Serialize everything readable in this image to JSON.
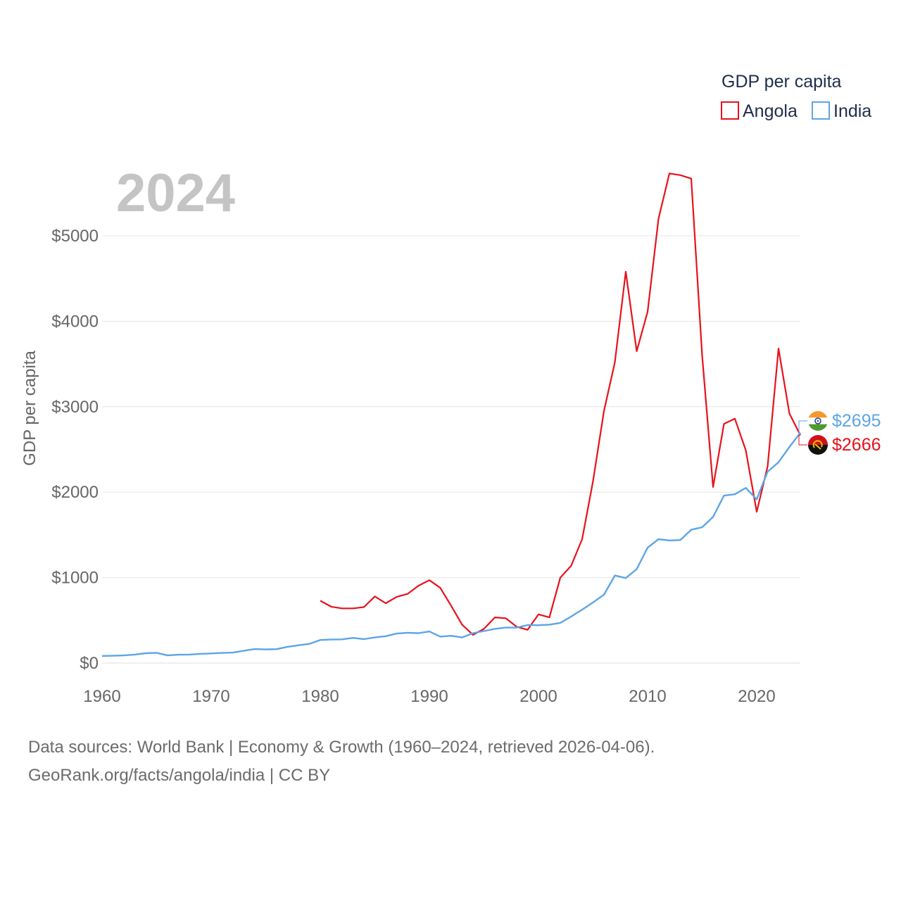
{
  "chart_data": {
    "type": "line",
    "title": "GDP per capita",
    "year_label": "2024",
    "ylabel": "GDP per capita",
    "xlabel": "",
    "xlim": [
      1960,
      2024
    ],
    "ylim": [
      0,
      5700
    ],
    "x_ticks": [
      1960,
      1970,
      1980,
      1990,
      2000,
      2010,
      2020
    ],
    "y_ticks": [
      0,
      1000,
      2000,
      3000,
      4000,
      5000
    ],
    "y_tick_labels": [
      "$0",
      "$1000",
      "$2000",
      "$3000",
      "$4000",
      "$5000"
    ],
    "x_tick_labels": [
      "1960",
      "1970",
      "1980",
      "1990",
      "2000",
      "2010",
      "2020"
    ],
    "grid": true,
    "legend_position": "top-right",
    "series": [
      {
        "name": "Angola",
        "color": "#e8111b",
        "end_label": "$2666",
        "flag": "angola-flag",
        "x": [
          1980,
          1981,
          1982,
          1983,
          1984,
          1985,
          1986,
          1987,
          1988,
          1989,
          1990,
          1991,
          1992,
          1993,
          1994,
          1995,
          1996,
          1997,
          1998,
          1999,
          2000,
          2001,
          2002,
          2003,
          2004,
          2005,
          2006,
          2007,
          2008,
          2009,
          2010,
          2011,
          2012,
          2013,
          2014,
          2015,
          2016,
          2017,
          2018,
          2019,
          2020,
          2021,
          2022,
          2023,
          2024
        ],
        "values": [
          730,
          660,
          640,
          640,
          655,
          780,
          700,
          775,
          810,
          905,
          970,
          880,
          670,
          450,
          330,
          400,
          535,
          525,
          425,
          390,
          570,
          535,
          1000,
          1140,
          1450,
          2130,
          2950,
          3520,
          4580,
          3650,
          4110,
          5200,
          5730,
          5710,
          5670,
          3600,
          2060,
          2800,
          2860,
          2490,
          1770,
          2300,
          3680,
          2920,
          2666
        ]
      },
      {
        "name": "India",
        "color": "#5ca5e6",
        "end_label": "$2695",
        "flag": "india-flag",
        "x": [
          1960,
          1961,
          1962,
          1963,
          1964,
          1965,
          1966,
          1967,
          1968,
          1969,
          1970,
          1971,
          1972,
          1973,
          1974,
          1975,
          1976,
          1977,
          1978,
          1979,
          1980,
          1981,
          1982,
          1983,
          1984,
          1985,
          1986,
          1987,
          1988,
          1989,
          1990,
          1991,
          1992,
          1993,
          1994,
          1995,
          1996,
          1997,
          1998,
          1999,
          2000,
          2001,
          2002,
          2003,
          2004,
          2005,
          2006,
          2007,
          2008,
          2009,
          2010,
          2011,
          2012,
          2013,
          2014,
          2015,
          2016,
          2017,
          2018,
          2019,
          2020,
          2021,
          2022,
          2023,
          2024
        ],
        "values": [
          83,
          86,
          90,
          100,
          115,
          120,
          90,
          98,
          100,
          108,
          113,
          119,
          123,
          145,
          164,
          160,
          163,
          190,
          208,
          225,
          270,
          275,
          278,
          295,
          280,
          300,
          315,
          345,
          355,
          350,
          370,
          310,
          320,
          300,
          350,
          375,
          400,
          415,
          415,
          445,
          443,
          450,
          470,
          545,
          625,
          710,
          800,
          1025,
          995,
          1100,
          1350,
          1450,
          1435,
          1440,
          1560,
          1590,
          1710,
          1960,
          1975,
          2050,
          1915,
          2240,
          2350,
          2530,
          2695
        ]
      }
    ]
  },
  "source": {
    "line1": "Data sources: World Bank | Economy & Growth (1960–2024, retrieved 2026-04-06).",
    "line2": "GeoRank.org/facts/angola/india | CC BY"
  }
}
